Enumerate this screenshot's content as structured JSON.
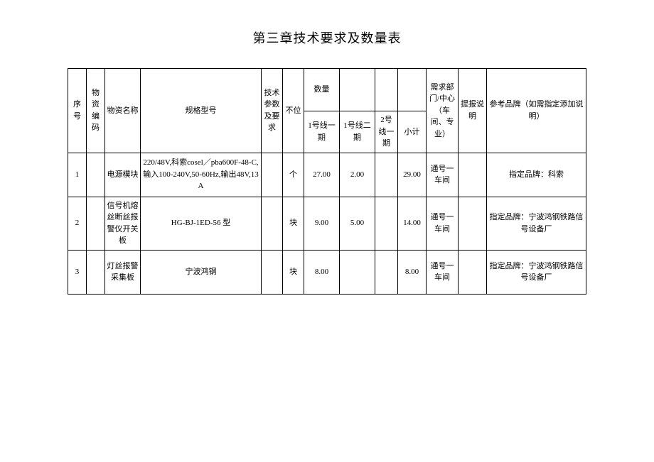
{
  "title": "第三章技术要求及数量表",
  "columns": {
    "seq": "序号",
    "code": "物资编码",
    "name": "物资名称",
    "spec": "规格型号",
    "tech": "技术参数及要求",
    "unit": "不位",
    "qty": "数量",
    "dept": "需求部门/中心（车间、专业）",
    "note": "提报说明",
    "brand": "参考品牌（如需指定添加说明）"
  },
  "subcols": {
    "l1p1": "1号线一期",
    "l1p2": "1号线二期",
    "l2p1": "2号线一期",
    "subtotal": "小计"
  },
  "rows": [
    {
      "seq": "1",
      "code": "",
      "name": "电源模块",
      "spec": "220/48V,科索cosel／pba600F-48-C,输入100-240V,50-60Hz,输出48V,13A",
      "tech": "",
      "unit": "个",
      "q1": "27.00",
      "q2": "2.00",
      "q3": "",
      "sub": "29.00",
      "dept": "通号一车间",
      "note": "",
      "brand": "指定品牌：科索"
    },
    {
      "seq": "2",
      "code": "",
      "name": "信号机熔丝断丝报警仪开关板",
      "spec": "HG-BJ-1ED-56 型",
      "tech": "",
      "unit": "块",
      "q1": "9.00",
      "q2": "5.00",
      "q3": "",
      "sub": "14.00",
      "dept": "通号一车间",
      "note": "",
      "brand": "指定品牌：宁波鸿钢铁路信号设备厂"
    },
    {
      "seq": "3",
      "code": "",
      "name": "灯丝报警采集板",
      "spec": "宁波鸿钢",
      "tech": "",
      "unit": "块",
      "q1": "8.00",
      "q2": "",
      "q3": "",
      "sub": "8.00",
      "dept": "通号一车间",
      "note": "",
      "brand": "指定品牌：宁波鸿钢铁路信号设备厂"
    }
  ]
}
